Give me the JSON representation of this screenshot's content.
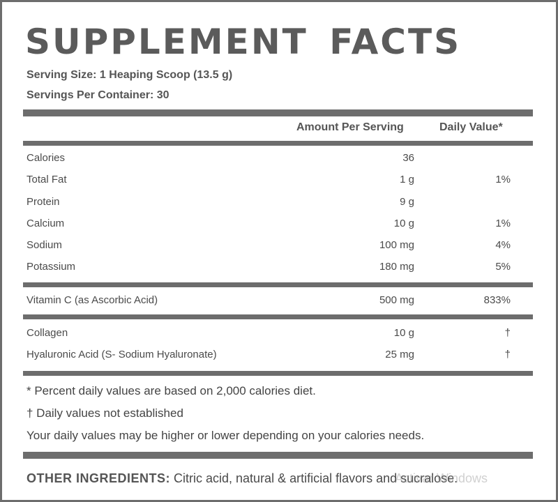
{
  "title": "SUPPLEMENT FACTS",
  "serving_size": "Serving Size:  1 Heaping Scoop (13.5 g)",
  "servings_per_container": "Servings Per Container: 30",
  "headers": {
    "amount": "Amount Per Serving",
    "daily_value": "Daily Value*"
  },
  "group1": [
    {
      "name": "Calories",
      "amount": "36",
      "dv": ""
    },
    {
      "name": "Total Fat",
      "amount": "1 g",
      "dv": "1%"
    },
    {
      "name": "Protein",
      "amount": "9 g",
      "dv": ""
    },
    {
      "name": "Calcium",
      "amount": "10 g",
      "dv": "1%"
    },
    {
      "name": "Sodium",
      "amount": "100 mg",
      "dv": "4%"
    },
    {
      "name": "Potassium",
      "amount": "180 mg",
      "dv": "5%"
    }
  ],
  "group2": [
    {
      "name": "Vitamin C (as Ascorbic Acid)",
      "amount": "500 mg",
      "dv": "833%"
    }
  ],
  "group3": [
    {
      "name": "Collagen",
      "amount": "10 g",
      "dv": "†"
    },
    {
      "name": "Hyaluronic Acid (S- Sodium Hyaluronate)",
      "amount": "25 mg",
      "dv": "†"
    }
  ],
  "footnotes": [
    "* Percent daily values are based on 2,000 calories diet.",
    "† Daily values not established",
    "Your daily values may be higher or lower depending on your calories needs."
  ],
  "other_ingredients": {
    "label": "OTHER INGREDIENTS:",
    "text": " Citric acid, natural & artificial flavors and sucralose."
  },
  "watermark": "Activar Windows"
}
